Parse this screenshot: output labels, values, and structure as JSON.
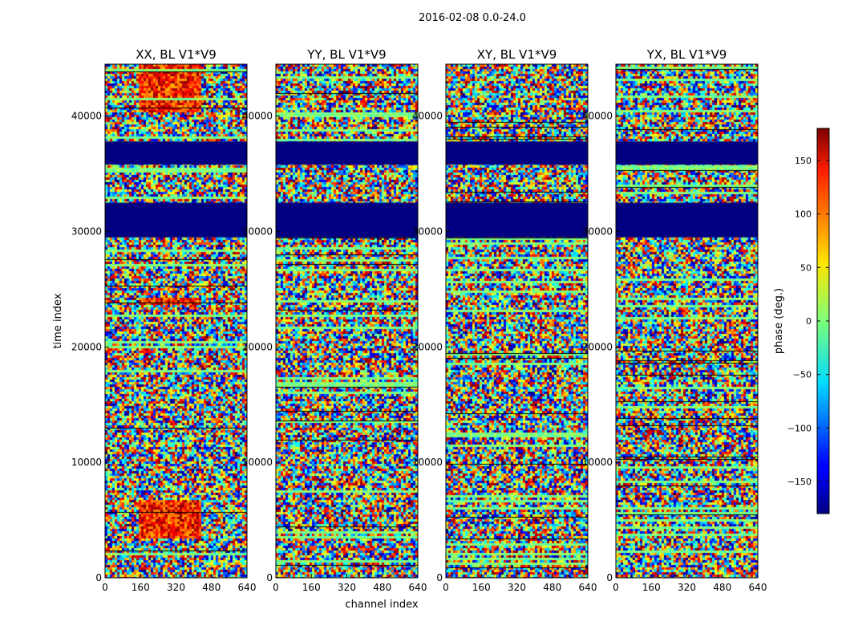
{
  "figure": {
    "suptitle": "2016-02-08 0.0-24.0",
    "ylabel": "time index",
    "xlabel": "channel index"
  },
  "chart_data": {
    "type": "heatmap",
    "panels": [
      {
        "title": "XX, BL V1*V9"
      },
      {
        "title": "YY, BL V1*V9"
      },
      {
        "title": "XY, BL V1*V9"
      },
      {
        "title": "YX, BL V1*V9"
      }
    ],
    "xlim": [
      0,
      640
    ],
    "ylim": [
      0,
      44500
    ],
    "x_ticks": [
      0,
      160,
      320,
      480,
      640
    ],
    "y_ticks": [
      0,
      10000,
      20000,
      30000,
      40000
    ],
    "colorbar": {
      "label": "phase (deg.)",
      "range": [
        -180,
        180
      ],
      "ticks": [
        -150,
        -100,
        -50,
        0,
        50,
        100,
        150
      ],
      "tick_labels": [
        "−150",
        "−100",
        "−50",
        "0",
        "50",
        "100",
        "150"
      ],
      "colormap": "jet"
    },
    "constant_bands": [
      {
        "y_range": [
          29500,
          32500
        ],
        "phase": -180
      },
      {
        "y_range": [
          35800,
          37800
        ],
        "phase": -180
      }
    ],
    "series": []
  }
}
